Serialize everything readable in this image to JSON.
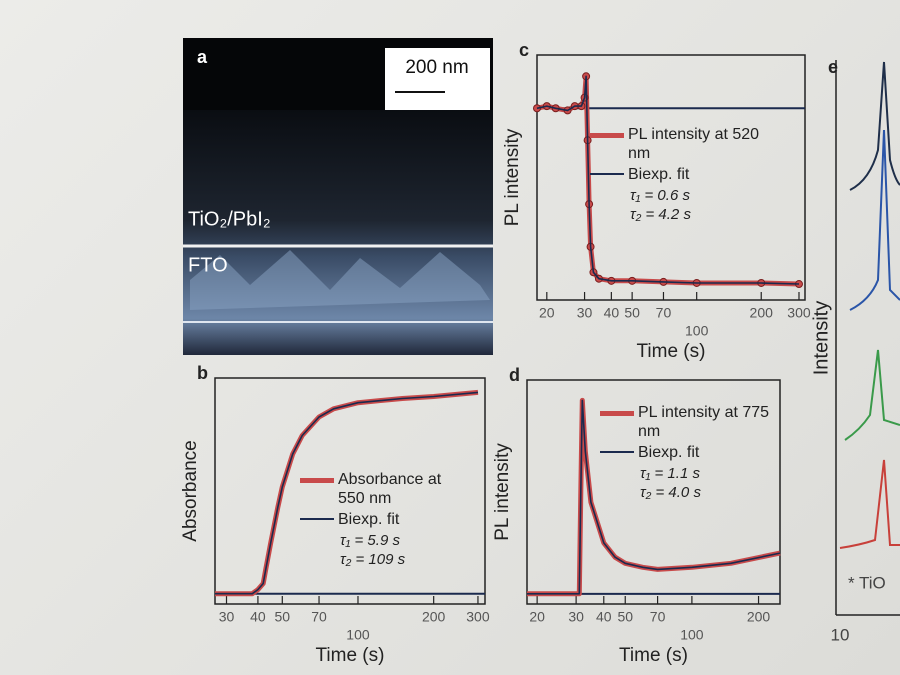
{
  "image_panel": {
    "label": "a",
    "scale_bar": "200 nm",
    "layer_top": "TiO₂/PbI₂",
    "layer_bottom": "FTO"
  },
  "panel_e": {
    "label": "e",
    "y_label": "Intensity",
    "x_tick": "10",
    "legend_fragment": "* TiO"
  },
  "chart_data": [
    {
      "type": "line",
      "panel_label": "b",
      "y_label": "Absorbance",
      "x_label": "Time (s)",
      "log_x": true,
      "x": [
        27,
        38,
        40,
        42,
        43,
        45,
        48,
        50,
        55,
        60,
        70,
        80,
        100,
        150,
        200,
        300
      ],
      "series": [
        {
          "name": "Absorbance at 550 nm",
          "color": "#c84a4a",
          "values": [
            0,
            0,
            0.02,
            0.05,
            0.12,
            0.25,
            0.42,
            0.52,
            0.68,
            0.77,
            0.86,
            0.9,
            0.93,
            0.95,
            0.96,
            0.98
          ]
        },
        {
          "name": "Biexp. fit",
          "color": "#1b2a4e",
          "values": [
            0,
            0,
            0.02,
            0.05,
            0.12,
            0.25,
            0.42,
            0.52,
            0.68,
            0.77,
            0.86,
            0.9,
            0.93,
            0.95,
            0.96,
            0.98
          ]
        }
      ],
      "baseline": 0,
      "annotations": [
        "τ₁ = 5.9 s",
        "τ₂ = 109 s"
      ],
      "xlim": [
        27,
        320
      ],
      "xticks": [
        30,
        40,
        50,
        70,
        100,
        200,
        300
      ],
      "ylim": [
        -0.05,
        1.05
      ]
    },
    {
      "type": "line",
      "panel_label": "c",
      "y_label": "PL intensity",
      "x_label": "Time (s)",
      "log_x": true,
      "markers": true,
      "x": [
        18,
        20,
        22,
        25,
        27,
        29,
        30,
        30.5,
        31,
        31.5,
        32,
        33,
        35,
        40,
        50,
        70,
        100,
        200,
        300
      ],
      "series": [
        {
          "name": "PL intensity at 520 nm",
          "color": "#c84a4a",
          "values": [
            0.85,
            0.86,
            0.85,
            0.84,
            0.86,
            0.86,
            0.9,
            1.0,
            0.7,
            0.4,
            0.2,
            0.08,
            0.05,
            0.04,
            0.04,
            0.035,
            0.03,
            0.03,
            0.025
          ]
        },
        {
          "name": "Biexp. fit",
          "color": "#1b2a4e",
          "values": [
            0.85,
            0.86,
            0.85,
            0.84,
            0.86,
            0.86,
            0.9,
            1.0,
            0.7,
            0.4,
            0.2,
            0.08,
            0.05,
            0.04,
            0.04,
            0.035,
            0.03,
            0.03,
            0.025
          ]
        }
      ],
      "baseline": 0.85,
      "annotations": [
        "τ₁ = 0.6 s",
        "τ₂ = 4.2 s"
      ],
      "xlim": [
        18,
        320
      ],
      "xticks": [
        20,
        30,
        40,
        50,
        70,
        100,
        200,
        300
      ],
      "ylim": [
        -0.05,
        1.1
      ]
    },
    {
      "type": "line",
      "panel_label": "d",
      "y_label": "PL intensity",
      "x_label": "Time (s)",
      "log_x": true,
      "x": [
        18,
        25,
        30,
        31,
        31.5,
        32,
        33,
        35,
        40,
        45,
        50,
        60,
        70,
        100,
        150,
        250
      ],
      "series": [
        {
          "name": "PL intensity at 775 nm",
          "color": "#c84a4a",
          "values": [
            0,
            0,
            0,
            0,
            0.5,
            0.95,
            0.7,
            0.45,
            0.25,
            0.18,
            0.15,
            0.13,
            0.12,
            0.13,
            0.15,
            0.2
          ]
        },
        {
          "name": "Biexp. fit",
          "color": "#1b2a4e",
          "values": [
            0,
            0,
            0,
            0,
            0.5,
            0.95,
            0.7,
            0.45,
            0.25,
            0.18,
            0.15,
            0.13,
            0.12,
            0.13,
            0.15,
            0.2
          ]
        }
      ],
      "baseline": 0,
      "annotations": [
        "τ₁ = 1.1 s",
        "τ₂ = 4.0 s"
      ],
      "xlim": [
        18,
        250
      ],
      "xticks": [
        20,
        30,
        40,
        50,
        70,
        100,
        200
      ],
      "ylim": [
        -0.05,
        1.05
      ]
    }
  ]
}
